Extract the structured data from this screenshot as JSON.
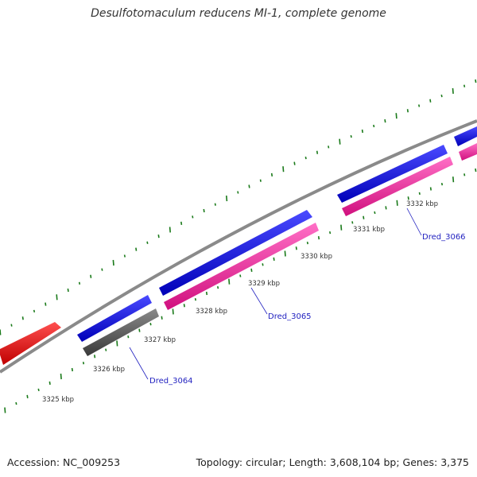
{
  "title": "Desulfotomaculum reducens MI-1, complete genome",
  "footer": {
    "accession": "Accession: NC_009253",
    "summary": "Topology: circular; Length: 3,608,104 bp; Genes: 3,375"
  },
  "colors": {
    "backbone": "#808080",
    "gc_skew_ticks": "#1a7a1a",
    "forward_gene": "#1010e0",
    "reverse_gene_magenta": "#ee2aa0",
    "reverse_gene_gray": "#555555",
    "red_gene": "#ee1010",
    "label_line": "#2020c0"
  },
  "kbp_labels": [
    "3325 kbp",
    "3326 kbp",
    "3327 kbp",
    "3328 kbp",
    "3329 kbp",
    "3330 kbp",
    "3331 kbp",
    "3332 kbp"
  ],
  "gene_labels": [
    "Dred_3064",
    "Dred_3065",
    "Dred_3066"
  ]
}
